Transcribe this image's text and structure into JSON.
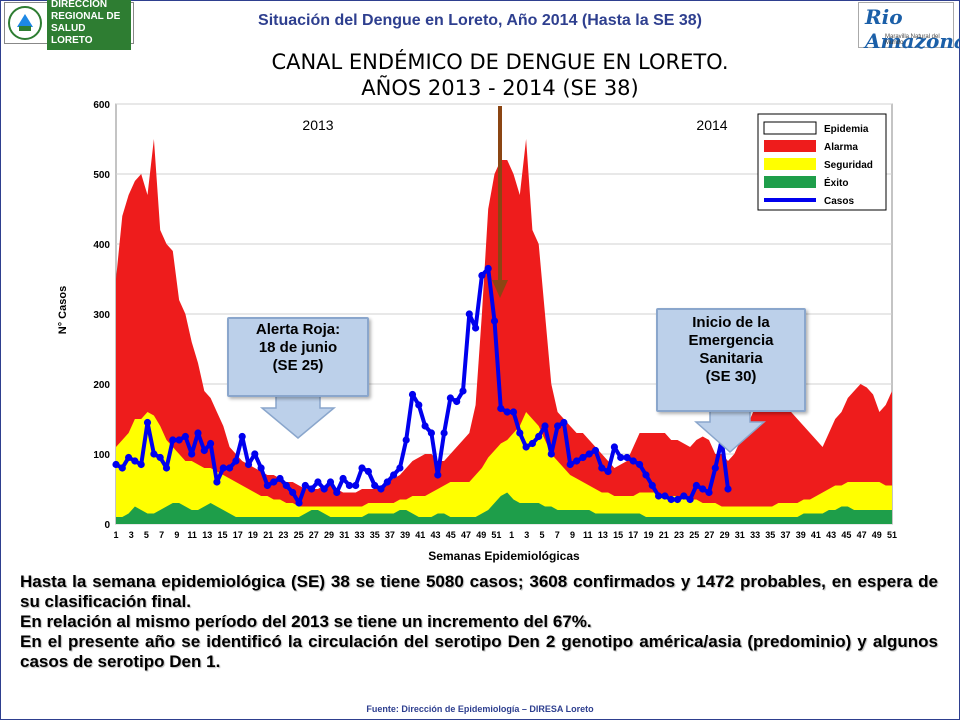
{
  "header": {
    "title": "Situación del Dengue en Loreto, Año 2014 (Hasta la SE 38)",
    "org_logo_text": "DIRECCIÓN REGIONAL DE SALUD LORETO",
    "brand_logo_text": "Rio Amazonas",
    "brand_logo_sub": "Maravilla Natural del Mundo"
  },
  "callouts": {
    "alerta": [
      "Alerta Roja:",
      "18 de junio",
      "(SE 25)"
    ],
    "emergencia": [
      "Inicio de la",
      "Emergencia",
      "Sanitaria",
      "(SE 30)"
    ]
  },
  "summary": {
    "p1": "Hasta la semana epidemiológica (SE) 38 se tiene 5080 casos; 3608 confirmados y 1472 probables, en espera de su clasificación final.",
    "p2": "En relación al mismo período del 2013 se tiene un incremento del 67%.",
    "p3": "En el presente año se identificó la circulación del serotipo Den 2 genotipo américa/asia (predominio) y algunos casos de serotipo Den 1."
  },
  "source": "Fuente: Dirección de Epidemiología – DIRESA Loreto",
  "colors": {
    "epidemia": "#ffffff",
    "alarma": "#ee1c1c",
    "seguridad": "#ffff00",
    "exito": "#1e9e4a",
    "casos": "#0000ee",
    "arrow": "#8b4513",
    "callout_fill": "#bcd0ea"
  },
  "chart_data": {
    "type": "area",
    "title": [
      "CANAL ENDÉMICO DE DENGUE EN LORETO.",
      "AÑOS 2013 - 2014 (SE 38)"
    ],
    "xlabel": "Semanas Epidemiológicas",
    "ylabel": "N° Casos",
    "ylim": [
      0,
      600
    ],
    "yticks": [
      0,
      100,
      200,
      300,
      400,
      500,
      600
    ],
    "xtick_labels": [
      "1",
      "3",
      "5",
      "7",
      "9",
      "11",
      "13",
      "15",
      "17",
      "19",
      "21",
      "23",
      "25",
      "27",
      "29",
      "31",
      "33",
      "35",
      "37",
      "39",
      "41",
      "43",
      "45",
      "47",
      "49",
      "51",
      "1",
      "3",
      "5",
      "7",
      "9",
      "11",
      "13",
      "15",
      "17",
      "19",
      "21",
      "23",
      "25",
      "27",
      "29",
      "31",
      "33",
      "35",
      "37",
      "39",
      "41",
      "43",
      "45",
      "47",
      "49",
      "51"
    ],
    "year_labels": [
      "2013",
      "2014"
    ],
    "grid": "horizontal",
    "legend_position": "top-right",
    "legend": [
      "Epidemia",
      "Alarma",
      "Seguridad",
      "Éxito",
      "Casos"
    ],
    "series": [
      {
        "name": "Alarma",
        "values": [
          350,
          440,
          470,
          490,
          500,
          470,
          550,
          420,
          400,
          390,
          320,
          300,
          260,
          230,
          190,
          180,
          160,
          140,
          110,
          100,
          90,
          85,
          80,
          75,
          70,
          70,
          65,
          60,
          60,
          55,
          50,
          50,
          50,
          55,
          55,
          50,
          45,
          45,
          45,
          50,
          50,
          50,
          55,
          60,
          65,
          70,
          80,
          90,
          95,
          100,
          100,
          90,
          90,
          100,
          110,
          120,
          130,
          170,
          300,
          450,
          500,
          520,
          520,
          500,
          470,
          550,
          420,
          400,
          300,
          200,
          160,
          150,
          140,
          130,
          130,
          120,
          110,
          100,
          90,
          80,
          85,
          90,
          110,
          130,
          130,
          130,
          130,
          130,
          120,
          120,
          115,
          110,
          120,
          125,
          120,
          100,
          100,
          90,
          100,
          120,
          140,
          160,
          180,
          195,
          200,
          195,
          180,
          160,
          150,
          140,
          130,
          120,
          110,
          130,
          150,
          160,
          180,
          190,
          200,
          195,
          185,
          160,
          170,
          190
        ]
      },
      {
        "name": "Seguridad",
        "values": [
          110,
          120,
          130,
          150,
          150,
          160,
          155,
          140,
          120,
          110,
          100,
          90,
          90,
          85,
          80,
          80,
          75,
          70,
          65,
          60,
          55,
          50,
          45,
          40,
          40,
          35,
          35,
          30,
          30,
          25,
          25,
          25,
          25,
          25,
          25,
          25,
          25,
          25,
          25,
          25,
          30,
          30,
          30,
          30,
          30,
          35,
          35,
          40,
          40,
          40,
          45,
          50,
          55,
          60,
          60,
          60,
          60,
          70,
          80,
          95,
          105,
          115,
          120,
          130,
          140,
          160,
          150,
          140,
          120,
          100,
          90,
          80,
          70,
          65,
          60,
          55,
          50,
          45,
          45,
          40,
          40,
          40,
          40,
          45,
          45,
          45,
          45,
          40,
          40,
          40,
          35,
          35,
          35,
          30,
          30,
          30,
          25,
          25,
          25,
          25,
          25,
          25,
          25,
          25,
          25,
          30,
          30,
          30,
          30,
          35,
          35,
          40,
          45,
          50,
          55,
          55,
          60,
          60,
          60,
          60,
          60,
          60,
          55,
          55
        ]
      },
      {
        "name": "Éxito",
        "values": [
          10,
          10,
          15,
          25,
          20,
          15,
          15,
          20,
          25,
          30,
          30,
          25,
          20,
          20,
          25,
          30,
          25,
          20,
          15,
          10,
          10,
          10,
          10,
          10,
          10,
          10,
          10,
          10,
          10,
          10,
          15,
          20,
          20,
          15,
          10,
          10,
          10,
          10,
          10,
          10,
          15,
          15,
          15,
          15,
          15,
          20,
          20,
          15,
          10,
          10,
          10,
          15,
          15,
          10,
          10,
          10,
          10,
          10,
          15,
          20,
          30,
          40,
          45,
          35,
          30,
          30,
          30,
          30,
          25,
          25,
          20,
          20,
          20,
          20,
          20,
          20,
          15,
          15,
          15,
          15,
          15,
          15,
          15,
          15,
          10,
          10,
          10,
          10,
          10,
          10,
          10,
          10,
          10,
          10,
          10,
          10,
          10,
          10,
          10,
          10,
          10,
          10,
          10,
          10,
          10,
          10,
          10,
          10,
          10,
          15,
          15,
          15,
          15,
          20,
          20,
          25,
          25,
          20,
          20,
          20,
          20,
          20,
          20,
          20
        ]
      },
      {
        "name": "Casos",
        "values": [
          85,
          80,
          95,
          90,
          85,
          145,
          100,
          95,
          80,
          120,
          120,
          125,
          100,
          130,
          105,
          115,
          60,
          80,
          80,
          90,
          125,
          85,
          100,
          80,
          55,
          60,
          65,
          55,
          45,
          30,
          55,
          50,
          60,
          50,
          60,
          45,
          65,
          55,
          55,
          80,
          75,
          55,
          50,
          60,
          70,
          80,
          120,
          185,
          170,
          140,
          130,
          70,
          130,
          180,
          175,
          190,
          300,
          280,
          355,
          365,
          290,
          165,
          160,
          160,
          130,
          110,
          115,
          125,
          140,
          100,
          140,
          145,
          85,
          90,
          95,
          100,
          105,
          80,
          75,
          110,
          95,
          95,
          90,
          85,
          70,
          55,
          40,
          40,
          35,
          35,
          40,
          35,
          55,
          50,
          45,
          80,
          120,
          50
        ]
      }
    ]
  }
}
